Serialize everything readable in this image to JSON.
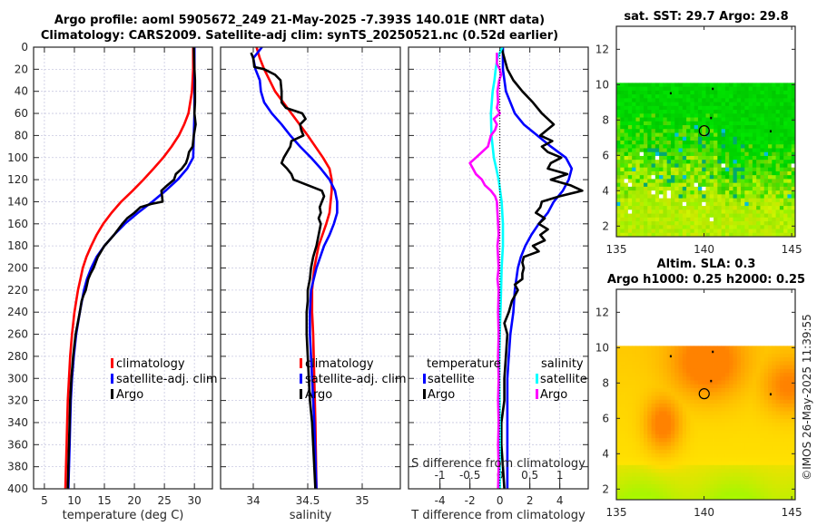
{
  "header": {
    "title_line1": "Argo profile: aoml 5905672_249 21-May-2025 -7.393S 140.01E (NRT data)",
    "title_line2": "Climatology: CARS2009. Satellite-adj clim: synTS_20250521.nc (0.52d earlier)"
  },
  "footer": {
    "timestamp": "©IMOS 26-May-2025 11:39:55"
  },
  "colors": {
    "climatology": "#ff0000",
    "satellite": "#0000ff",
    "argo": "#000000",
    "sal_satellite": "#00ffff",
    "sal_argo": "#ff00ff"
  },
  "chart_data": [
    {
      "type": "line",
      "id": "temperature",
      "xlabel": "temperature (deg C)",
      "ylabel": "",
      "xlim": [
        3.2,
        33
      ],
      "ylim": [
        400,
        0
      ],
      "xticks": [
        5,
        10,
        15,
        20,
        25,
        30
      ],
      "yticks": [
        0,
        20,
        40,
        60,
        80,
        100,
        120,
        140,
        160,
        180,
        200,
        220,
        240,
        260,
        280,
        300,
        320,
        340,
        360,
        380,
        400
      ],
      "grid": true,
      "legend": {
        "placement": "center-right",
        "entries": [
          "climatology",
          "satellite-adj. clim",
          "Argo"
        ]
      },
      "series": [
        {
          "name": "climatology",
          "color": "#ff0000",
          "depth": [
            0,
            20,
            40,
            60,
            70,
            80,
            90,
            100,
            110,
            120,
            130,
            140,
            150,
            160,
            170,
            180,
            190,
            200,
            210,
            220,
            240,
            260,
            280,
            300,
            320,
            340,
            360,
            380,
            400
          ],
          "values": [
            29.8,
            29.8,
            29.6,
            29.0,
            28.3,
            27.4,
            26.2,
            24.8,
            23.2,
            21.5,
            19.7,
            17.8,
            16.2,
            14.8,
            13.7,
            12.8,
            12.0,
            11.4,
            11.0,
            10.6,
            10.0,
            9.6,
            9.3,
            9.1,
            8.9,
            8.8,
            8.7,
            8.6,
            8.5
          ]
        },
        {
          "name": "satellite-adj. clim",
          "color": "#0000ff",
          "depth": [
            0,
            20,
            40,
            60,
            80,
            100,
            110,
            120,
            130,
            140,
            150,
            160,
            170,
            180,
            190,
            200,
            210,
            220,
            240,
            260,
            280,
            300,
            320,
            340,
            360,
            380,
            400
          ],
          "values": [
            30.0,
            30.0,
            30.0,
            30.0,
            29.9,
            29.8,
            28.8,
            27.2,
            25.2,
            23.0,
            20.6,
            18.4,
            16.6,
            15.0,
            13.7,
            12.8,
            12.1,
            11.6,
            10.9,
            10.3,
            9.9,
            9.6,
            9.4,
            9.3,
            9.2,
            9.1,
            9.0
          ]
        },
        {
          "name": "Argo",
          "color": "#000000",
          "depth": [
            0,
            20,
            30,
            50,
            60,
            70,
            80,
            90,
            95,
            100,
            105,
            110,
            115,
            120,
            125,
            130,
            135,
            140,
            142,
            145,
            150,
            155,
            160,
            170,
            180,
            190,
            200,
            205,
            210,
            220,
            225,
            230,
            240,
            260,
            280,
            300,
            320,
            340,
            360,
            380,
            400
          ],
          "values": [
            29.9,
            30.0,
            30.1,
            30.1,
            30.0,
            30.2,
            29.9,
            29.7,
            29.1,
            28.9,
            28.6,
            27.9,
            26.9,
            26.6,
            25.5,
            24.5,
            24.6,
            24.7,
            22.8,
            21.0,
            20.0,
            18.8,
            18.0,
            16.6,
            15.0,
            13.9,
            13.2,
            12.7,
            12.3,
            11.9,
            11.5,
            11.2,
            10.9,
            10.2,
            9.8,
            9.5,
            9.3,
            9.2,
            9.1,
            9.0,
            8.9
          ]
        }
      ]
    },
    {
      "type": "line",
      "id": "salinity",
      "xlabel": "salinity",
      "xlim": [
        33.7,
        35.35
      ],
      "ylim": [
        400,
        0
      ],
      "xticks": [
        34,
        34.5,
        35
      ],
      "grid": true,
      "legend": {
        "placement": "center-right",
        "entries": [
          "climatology",
          "satellite-adj. clim",
          "Argo"
        ]
      },
      "series": [
        {
          "name": "climatology",
          "color": "#ff0000",
          "depth": [
            0,
            10,
            20,
            40,
            60,
            80,
            100,
            110,
            120,
            130,
            140,
            150,
            160,
            180,
            200,
            220,
            240,
            260,
            300,
            340,
            400
          ],
          "values": [
            34.03,
            34.06,
            34.1,
            34.2,
            34.35,
            34.5,
            34.64,
            34.7,
            34.72,
            34.72,
            34.71,
            34.7,
            34.67,
            34.6,
            34.56,
            34.54,
            34.54,
            34.55,
            34.56,
            34.57,
            34.58
          ]
        },
        {
          "name": "satellite-adj. clim",
          "color": "#0000ff",
          "depth": [
            0,
            10,
            20,
            30,
            40,
            50,
            60,
            70,
            80,
            90,
            100,
            110,
            120,
            130,
            140,
            150,
            160,
            170,
            180,
            200,
            220,
            240,
            260,
            300,
            340,
            400
          ],
          "values": [
            34.08,
            34.0,
            34.02,
            34.06,
            34.07,
            34.1,
            34.17,
            34.26,
            34.34,
            34.43,
            34.53,
            34.62,
            34.7,
            34.75,
            34.77,
            34.77,
            34.74,
            34.7,
            34.65,
            34.58,
            34.53,
            34.52,
            34.52,
            34.54,
            34.56,
            34.58
          ]
        },
        {
          "name": "Argo",
          "color": "#000000",
          "depth": [
            5,
            10,
            18,
            20,
            25,
            30,
            40,
            50,
            55,
            60,
            65,
            70,
            75,
            80,
            85,
            90,
            95,
            100,
            105,
            110,
            115,
            120,
            125,
            130,
            135,
            140,
            145,
            150,
            155,
            160,
            170,
            180,
            190,
            200,
            210,
            220,
            230,
            240,
            260,
            280,
            300,
            320,
            340,
            360,
            380,
            400
          ],
          "values": [
            33.98,
            34.0,
            34.01,
            34.1,
            34.2,
            34.25,
            34.26,
            34.26,
            34.3,
            34.45,
            34.48,
            34.43,
            34.44,
            34.46,
            34.35,
            34.34,
            34.31,
            34.28,
            34.26,
            34.31,
            34.35,
            34.37,
            34.5,
            34.63,
            34.65,
            34.63,
            34.61,
            34.62,
            34.6,
            34.62,
            34.6,
            34.58,
            34.55,
            34.53,
            34.52,
            34.5,
            34.5,
            34.49,
            34.49,
            34.5,
            34.51,
            34.52,
            34.54,
            34.55,
            34.56,
            34.57
          ]
        }
      ]
    },
    {
      "type": "line",
      "id": "difference",
      "xlabel": "T difference from climatology",
      "x2label": "S difference from climatology",
      "xlim": [
        -6.1,
        5.9
      ],
      "x2lim": [
        -1.525,
        1.475
      ],
      "xticks": [
        -4,
        -2,
        0,
        2,
        4
      ],
      "x2ticks": [
        -1,
        -0.5,
        0,
        0.5,
        1
      ],
      "x2ticklabels": [
        "-1",
        "-0.5",
        "0",
        "0.5",
        "1"
      ],
      "grid": true,
      "legend": {
        "placement": "center",
        "groups": [
          {
            "title": "temperature",
            "entries": [
              "satellite",
              "Argo"
            ]
          },
          {
            "title": "salinity",
            "entries": [
              "satellite",
              "Argo"
            ]
          }
        ]
      },
      "series": [
        {
          "name": "temperature satellite",
          "color": "#0000ff",
          "axis": "T",
          "depth": [
            0,
            20,
            40,
            60,
            70,
            80,
            90,
            100,
            110,
            120,
            130,
            140,
            150,
            160,
            170,
            180,
            190,
            200,
            210,
            220,
            240,
            260,
            280,
            300,
            320,
            340,
            360,
            380,
            400
          ],
          "values": [
            0.2,
            0.2,
            0.4,
            1.0,
            1.6,
            2.5,
            3.4,
            4.4,
            4.8,
            4.6,
            4.2,
            3.6,
            3.2,
            2.6,
            2.1,
            1.7,
            1.4,
            1.2,
            1.1,
            1.0,
            0.9,
            0.7,
            0.6,
            0.5,
            0.5,
            0.5,
            0.5,
            0.5,
            0.5
          ]
        },
        {
          "name": "temperature Argo",
          "color": "#000000",
          "axis": "T",
          "depth": [
            0,
            10,
            20,
            30,
            40,
            50,
            60,
            70,
            80,
            85,
            90,
            95,
            100,
            105,
            110,
            115,
            120,
            125,
            130,
            135,
            140,
            145,
            150,
            155,
            160,
            165,
            170,
            175,
            180,
            185,
            190,
            195,
            200,
            205,
            210,
            215,
            220,
            230,
            240,
            250,
            260,
            280,
            300,
            320,
            340,
            360,
            380,
            400
          ],
          "values": [
            0.1,
            0.3,
            0.5,
            0.9,
            1.5,
            2.2,
            2.8,
            3.6,
            2.7,
            3.5,
            2.8,
            3.2,
            4.1,
            3.4,
            3.2,
            4.5,
            3.4,
            4.7,
            5.5,
            4.0,
            2.8,
            2.7,
            2.4,
            3.0,
            2.6,
            3.2,
            2.7,
            3.0,
            2.2,
            2.6,
            1.6,
            1.5,
            1.6,
            1.5,
            1.5,
            1.0,
            1.2,
            0.8,
            0.6,
            0.3,
            0.5,
            0.4,
            0.3,
            0.3,
            0.1,
            0.1,
            0.2,
            0.3
          ]
        },
        {
          "name": "salinity satellite",
          "color": "#00ffff",
          "axis": "S",
          "depth": [
            0,
            10,
            20,
            30,
            40,
            60,
            80,
            100,
            110,
            120,
            140,
            160,
            180,
            200,
            220,
            240,
            260,
            280,
            300,
            340,
            400
          ],
          "values": [
            0.04,
            -0.04,
            -0.07,
            -0.09,
            -0.12,
            -0.15,
            -0.14,
            -0.1,
            -0.06,
            -0.02,
            0.03,
            0.05,
            0.05,
            0.03,
            0.02,
            0.01,
            0.0,
            -0.01,
            -0.01,
            0.0,
            0.0
          ]
        },
        {
          "name": "salinity Argo",
          "color": "#ff00ff",
          "axis": "S",
          "depth": [
            5,
            15,
            20,
            25,
            30,
            40,
            50,
            55,
            60,
            65,
            70,
            75,
            80,
            90,
            95,
            100,
            105,
            110,
            115,
            120,
            125,
            130,
            135,
            140,
            150,
            160,
            170,
            180,
            190,
            200,
            210,
            220,
            240,
            260,
            280,
            300,
            320,
            340,
            360,
            380,
            400
          ],
          "values": [
            -0.05,
            -0.05,
            0.0,
            0.02,
            -0.01,
            -0.04,
            -0.03,
            -0.05,
            0.0,
            -0.1,
            -0.05,
            -0.08,
            -0.15,
            -0.2,
            -0.3,
            -0.4,
            -0.5,
            -0.45,
            -0.4,
            -0.3,
            -0.25,
            -0.15,
            -0.08,
            -0.05,
            -0.04,
            -0.03,
            -0.02,
            -0.04,
            -0.03,
            -0.02,
            -0.04,
            -0.02,
            -0.03,
            -0.02,
            -0.03,
            -0.02,
            -0.03,
            -0.02,
            -0.03,
            -0.02,
            -0.03
          ]
        }
      ]
    },
    {
      "type": "heatmap",
      "id": "sst-map",
      "title": "sat. SST: 29.7 Argo: 29.8",
      "xlim": [
        135,
        145.2
      ],
      "ylim": [
        1.4,
        13.3
      ],
      "xticks": [
        135,
        140,
        145
      ],
      "yticks": [
        2,
        4,
        6,
        8,
        10,
        12
      ],
      "data_extent_lat": [
        1.4,
        10.1
      ],
      "colormap": "green-yellow",
      "marker": {
        "lon": 140.01,
        "lat": 7.393,
        "shape": "circle"
      }
    },
    {
      "type": "heatmap",
      "id": "sla-map",
      "title_line1": "Altim. SLA: 0.3",
      "title_line2": "Argo h1000: 0.25 h2000: 0.25",
      "xlim": [
        135,
        145.2
      ],
      "ylim": [
        1.4,
        13.3
      ],
      "xticks": [
        135,
        140,
        145
      ],
      "yticks": [
        2,
        4,
        6,
        8,
        10,
        12
      ],
      "data_extent_lat": [
        1.4,
        10.1
      ],
      "colormap": "yellow-orange",
      "marker": {
        "lon": 140.01,
        "lat": 7.393,
        "shape": "circle"
      }
    }
  ]
}
